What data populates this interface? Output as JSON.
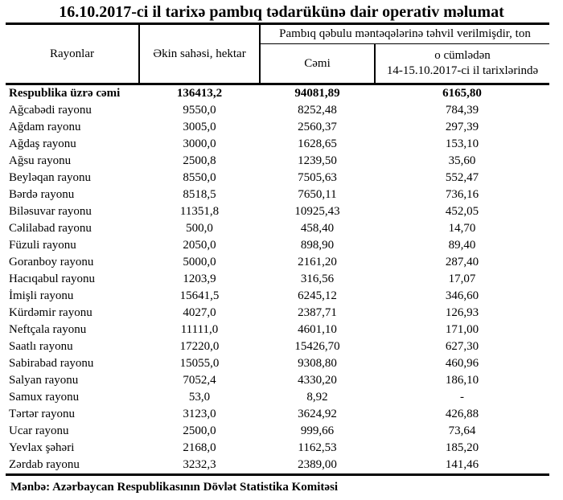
{
  "title": "16.10.2017-ci il tarixə pambıq tədarükünə dair operativ məlumat",
  "table": {
    "headers": {
      "rayonlar": "Rayonlar",
      "ekin_sahesi": "Əkin sahəsi, hektar",
      "group": "Pambıq qəbulu məntəqələrinə təhvil verilmişdir, ton",
      "cemi": "Cəmi",
      "ocumleden_line1": "o cümlədən",
      "ocumleden_line2": "14-15.10.2017-ci il tarixlərində"
    },
    "total_row": {
      "name": "Respublika üzrə cəmi",
      "area": "136413,2",
      "total": "94081,89",
      "recent": "6165,80"
    },
    "rows": [
      {
        "name": "Ağcabədi rayonu",
        "area": "9550,0",
        "total": "8252,48",
        "recent": "784,39"
      },
      {
        "name": "Ağdam rayonu",
        "area": "3005,0",
        "total": "2560,37",
        "recent": "297,39"
      },
      {
        "name": "Ağdaş rayonu",
        "area": "3000,0",
        "total": "1628,65",
        "recent": "153,10"
      },
      {
        "name": "Ağsu rayonu",
        "area": "2500,8",
        "total": "1239,50",
        "recent": "35,60"
      },
      {
        "name": "Beyləqan rayonu",
        "area": "8550,0",
        "total": "7505,63",
        "recent": "552,47"
      },
      {
        "name": "Bərdə rayonu",
        "area": "8518,5",
        "total": "7650,11",
        "recent": "736,16"
      },
      {
        "name": "Biləsuvar rayonu",
        "area": "11351,8",
        "total": "10925,43",
        "recent": "452,05"
      },
      {
        "name": "Cəlilabad rayonu",
        "area": "500,0",
        "total": "458,40",
        "recent": "14,70"
      },
      {
        "name": "Füzuli rayonu",
        "area": "2050,0",
        "total": "898,90",
        "recent": "89,40"
      },
      {
        "name": "Goranboy rayonu",
        "area": "5000,0",
        "total": "2161,20",
        "recent": "287,40"
      },
      {
        "name": "Hacıqabul rayonu",
        "area": "1203,9",
        "total": "316,56",
        "recent": "17,07"
      },
      {
        "name": "İmişli rayonu",
        "area": "15641,5",
        "total": "6245,12",
        "recent": "346,60"
      },
      {
        "name": "Kürdəmir rayonu",
        "area": "4027,0",
        "total": "2387,71",
        "recent": "126,93"
      },
      {
        "name": "Neftçala rayonu",
        "area": "11111,0",
        "total": "4601,10",
        "recent": "171,00"
      },
      {
        "name": "Saatlı rayonu",
        "area": "17220,0",
        "total": "15426,70",
        "recent": "627,30"
      },
      {
        "name": "Sabirabad rayonu",
        "area": "15055,0",
        "total": "9308,80",
        "recent": "460,96"
      },
      {
        "name": "Salyan rayonu",
        "area": "7052,4",
        "total": "4330,20",
        "recent": "186,10"
      },
      {
        "name": "Samux rayonu",
        "area": "53,0",
        "total": "8,92",
        "recent": "-"
      },
      {
        "name": "Tərtər rayonu",
        "area": "3123,0",
        "total": "3624,92",
        "recent": "426,88"
      },
      {
        "name": "Ucar rayonu",
        "area": "2500,0",
        "total": "999,66",
        "recent": "73,64"
      },
      {
        "name": "Yevlax şəhəri",
        "area": "2168,0",
        "total": "1162,53",
        "recent": "185,20"
      },
      {
        "name": "Zərdab rayonu",
        "area": "3232,3",
        "total": "2389,00",
        "recent": "141,46"
      }
    ]
  },
  "footer": {
    "source": "Mənbə: Azərbaycan Respublikasının Dövlət Statistika Komitəsi"
  },
  "colors": {
    "text": "#000000",
    "background": "#ffffff",
    "border": "#000000"
  }
}
